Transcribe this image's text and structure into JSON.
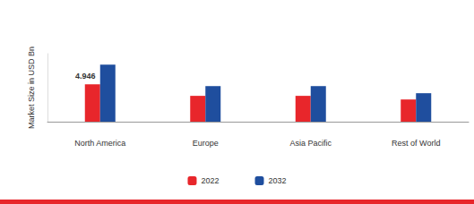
{
  "chart_data": {
    "type": "bar",
    "y_label": "Market Size in USD Bn",
    "categories": [
      "North America",
      "Europe",
      "Asia Pacific",
      "Rest of World"
    ],
    "series": [
      {
        "name": "2022",
        "color": "#e8262b",
        "values": [
          4.946,
          3.42,
          3.42,
          2.94
        ]
      },
      {
        "name": "2032",
        "color": "#1f4e9e",
        "values": [
          7.54,
          4.71,
          4.71,
          3.77
        ]
      }
    ],
    "annotations": [
      {
        "series": "2022",
        "category": "North America",
        "text": "4.946"
      }
    ],
    "ylim": [
      0,
      9
    ],
    "yticks": [],
    "grid": false,
    "legend": "bottom",
    "tick_labels": "x"
  }
}
